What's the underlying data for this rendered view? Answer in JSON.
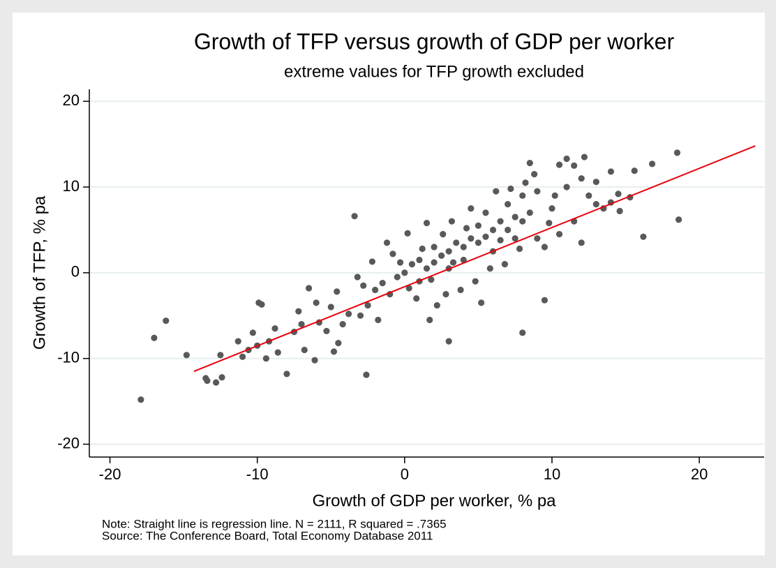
{
  "chart_data": {
    "type": "scatter",
    "title": "Growth of TFP versus growth of GDP per worker",
    "subtitle": "extreme values for TFP growth excluded",
    "x_label": "Growth of GDP per worker, % pa",
    "y_label": "Growth of TFP, % pa",
    "notes": [
      "Note:  Straight line is regression line. N = 2111, R squared = .7365",
      "Source:  The Conference Board, Total Economy Database 2011"
    ],
    "xlim": [
      -21.4,
      24.4
    ],
    "ylim": [
      -21.5,
      21.4
    ],
    "xticks": [
      -20,
      -10,
      0,
      10,
      20
    ],
    "yticks": [
      -20,
      -10,
      0,
      10,
      20
    ],
    "grid": true,
    "color": "#595959",
    "x": [
      -17.9,
      -17,
      -16.2,
      -14.8,
      -13.5,
      -13.4,
      -12.8,
      -12.4,
      -12.5,
      -11.3,
      -11,
      -10.6,
      -10,
      -9.9,
      -9.7,
      -9.4,
      -8.6,
      -8,
      -7.5,
      -7.2,
      -6.8,
      -6.5,
      -6.1,
      -5.3,
      -4.5,
      -4.6,
      -3.4,
      -2.6,
      -4.2,
      -3.8,
      -3,
      -2.5,
      -2,
      -1.5,
      -1,
      -0.5,
      0,
      0.5,
      1,
      1,
      1.5,
      2,
      2,
      2.5,
      3,
      3,
      3.5,
      4,
      4,
      4.5,
      5,
      5,
      5.5,
      6,
      6,
      6.5,
      7,
      7,
      7.5,
      8,
      8,
      8.5,
      8.5,
      9,
      9,
      9.5,
      10,
      10.5,
      11,
      11,
      11.5,
      12,
      12.2,
      12.5,
      13,
      13,
      13.5,
      14,
      14,
      14.5,
      14.6,
      15.3,
      15.6,
      16.2,
      16.8,
      18.5,
      18.6,
      8,
      3,
      5.2,
      1.7,
      -3.2,
      -5,
      -6,
      -7,
      0.2,
      1.5,
      -1.2,
      2.8,
      4.8,
      6.8,
      7.8,
      9.5,
      10.5,
      11.5,
      12,
      6.2,
      4.5,
      3.2,
      -2.2,
      -0.8,
      0.8,
      -1.8,
      -4.8,
      2.2,
      3.8,
      5.8,
      -8.8,
      -9.2,
      -10.3,
      -5.8,
      -2.8,
      1.2,
      2.6,
      4.2,
      5.5,
      7.2,
      8.8,
      9.8,
      10.2,
      0.3,
      -0.3,
      1.8,
      3.3,
      6.5,
      7.5,
      8.2
    ],
    "values": [
      -14.8,
      -7.6,
      -5.6,
      -9.6,
      -12.3,
      -12.6,
      -12.8,
      -12.2,
      -9.6,
      -8,
      -9.8,
      -9,
      -8.5,
      -3.5,
      -3.7,
      -10,
      -9.3,
      -11.8,
      -6.9,
      -4.5,
      -9,
      -1.8,
      -10.2,
      -6.8,
      -8.2,
      -2.2,
      6.6,
      -11.9,
      -6,
      -4.8,
      -5,
      -3.8,
      -2,
      -1.2,
      -2.5,
      -0.5,
      0,
      1,
      1.5,
      -1,
      0.5,
      1.2,
      3,
      2,
      2.5,
      0.5,
      3.5,
      3,
      1.5,
      4,
      3.5,
      5.5,
      4.2,
      5,
      2.5,
      6,
      5,
      8,
      6.5,
      6,
      9,
      7,
      12.8,
      9.5,
      4,
      -3.2,
      7.5,
      12.6,
      10,
      13.3,
      12.5,
      11,
      13.5,
      9,
      10.6,
      8,
      7.5,
      11.8,
      8.2,
      9.2,
      7.2,
      8.8,
      11.9,
      4.2,
      12.7,
      14,
      6.2,
      -7,
      -8,
      -3.5,
      -5.5,
      -0.5,
      -4,
      -3.5,
      -6,
      4.6,
      5.8,
      3.5,
      -2.5,
      -1,
      1,
      2.8,
      3,
      4.5,
      6,
      3.5,
      9.5,
      7.5,
      6,
      1.3,
      2.2,
      -3,
      -5.5,
      -9.2,
      -3.8,
      -2,
      0.5,
      -6.5,
      -8,
      -7,
      -5.8,
      -1.5,
      2.8,
      4.5,
      5.2,
      7,
      9.8,
      11.5,
      5.8,
      9,
      -1.8,
      1.2,
      -0.8,
      1.2,
      3.8,
      4,
      10.5
    ],
    "regression": {
      "x": [
        -14.3,
        23.8
      ],
      "values": [
        -11.5,
        14.8
      ],
      "color": "#e8000b"
    }
  }
}
